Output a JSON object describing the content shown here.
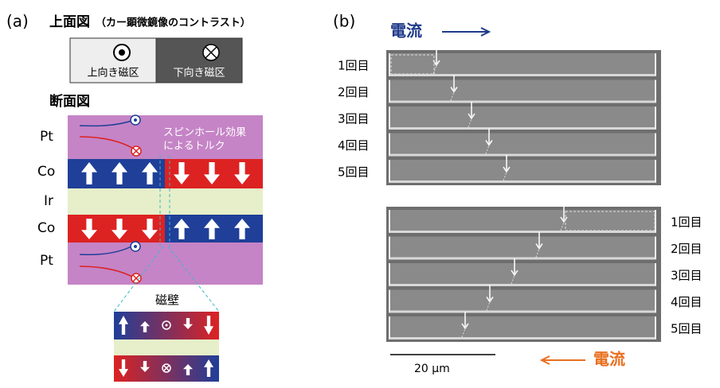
{
  "panel_a": {
    "label": "(a)",
    "top_view": {
      "title": "上面図",
      "subtitle": "（カー顕微鏡像のコントラスト）",
      "legend": [
        "上向き磁区",
        "下向き磁区"
      ]
    },
    "cross_section": {
      "title": "断面図",
      "layers": [
        "Pt",
        "Co",
        "Ir",
        "Co",
        "Pt"
      ],
      "annotation": [
        "スピンホール効果",
        "によるトルク"
      ]
    },
    "domain_wall": {
      "title": "磁壁"
    }
  },
  "panel_b": {
    "label": "(b)",
    "top": {
      "current_label": "電流",
      "rows": [
        "1回目",
        "2回目",
        "3回目",
        "4回目",
        "5回目"
      ]
    },
    "bottom": {
      "current_label": "電流",
      "rows": [
        "1回目",
        "2回目",
        "3回目",
        "4回目",
        "5回目"
      ]
    },
    "scale_bar": "20 µm"
  }
}
